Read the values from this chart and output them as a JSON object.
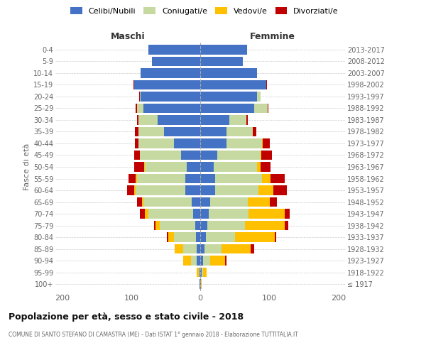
{
  "age_groups": [
    "100+",
    "95-99",
    "90-94",
    "85-89",
    "80-84",
    "75-79",
    "70-74",
    "65-69",
    "60-64",
    "55-59",
    "50-54",
    "45-49",
    "40-44",
    "35-39",
    "30-34",
    "25-29",
    "20-24",
    "15-19",
    "10-14",
    "5-9",
    "0-4"
  ],
  "birth_years": [
    "≤ 1917",
    "1918-1922",
    "1923-1927",
    "1928-1932",
    "1933-1937",
    "1938-1942",
    "1943-1947",
    "1948-1952",
    "1953-1957",
    "1958-1962",
    "1963-1967",
    "1968-1972",
    "1973-1977",
    "1978-1982",
    "1983-1987",
    "1988-1992",
    "1993-1997",
    "1998-2002",
    "2003-2007",
    "2008-2012",
    "2013-2017"
  ],
  "colors": {
    "celibi": "#4472C4",
    "coniugati": "#c5d9a0",
    "vedovi": "#ffc000",
    "divorziati": "#c00000"
  },
  "maschi": {
    "celibi": [
      1,
      1,
      5,
      5,
      6,
      7,
      10,
      12,
      22,
      22,
      20,
      28,
      38,
      52,
      62,
      82,
      86,
      96,
      86,
      70,
      75
    ],
    "coniugati": [
      0,
      1,
      8,
      20,
      32,
      52,
      65,
      70,
      72,
      70,
      60,
      60,
      52,
      38,
      28,
      10,
      2,
      0,
      0,
      0,
      0
    ],
    "vedovi": [
      0,
      3,
      12,
      12,
      8,
      6,
      5,
      2,
      2,
      2,
      1,
      0,
      0,
      0,
      0,
      0,
      0,
      0,
      0,
      0,
      0
    ],
    "divorziati": [
      0,
      0,
      0,
      0,
      2,
      2,
      8,
      8,
      10,
      10,
      15,
      8,
      5,
      5,
      2,
      2,
      1,
      1,
      0,
      0,
      0
    ]
  },
  "femmine": {
    "celibi": [
      1,
      2,
      4,
      6,
      8,
      10,
      12,
      14,
      22,
      22,
      20,
      25,
      38,
      38,
      42,
      78,
      82,
      96,
      82,
      62,
      68
    ],
    "coniugati": [
      0,
      2,
      10,
      25,
      42,
      55,
      58,
      55,
      62,
      68,
      62,
      62,
      52,
      38,
      25,
      20,
      5,
      0,
      0,
      0,
      0
    ],
    "vedovi": [
      1,
      5,
      22,
      42,
      58,
      58,
      52,
      32,
      22,
      12,
      5,
      2,
      1,
      0,
      0,
      0,
      0,
      0,
      0,
      0,
      0
    ],
    "divorziati": [
      0,
      0,
      2,
      5,
      2,
      5,
      8,
      10,
      20,
      20,
      15,
      15,
      10,
      5,
      2,
      1,
      1,
      1,
      0,
      0,
      0
    ]
  },
  "xlim": 210,
  "title": "Popolazione per età, sesso e stato civile - 2018",
  "subtitle": "COMUNE DI SANTO STEFANO DI CAMASTRA (ME) - Dati ISTAT 1° gennaio 2018 - Elaborazione TUTTITALIA.IT",
  "ylabel_left": "Fasce di età",
  "xlabel_maschi": "Maschi",
  "xlabel_femmine": "Femmine",
  "bg_color": "#ffffff",
  "grid_color": "#cccccc",
  "bar_height": 0.82,
  "legend_labels": [
    "Celibi/Nubili",
    "Coniugati/e",
    "Vedovi/e",
    "Divorziati/e"
  ]
}
